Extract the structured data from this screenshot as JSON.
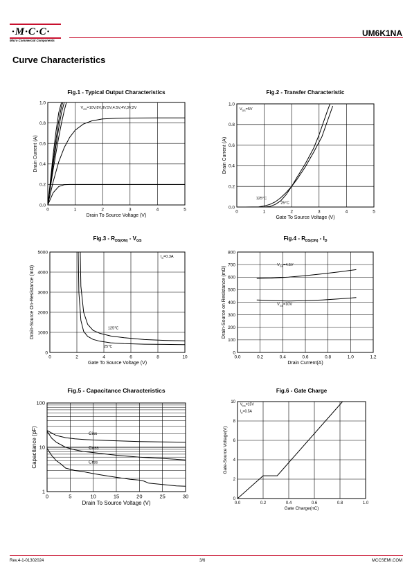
{
  "header": {
    "logo_text": "·M·C·C·",
    "logo_subtitle": "Micro Commercial Components",
    "part_number": "UM6K1NA"
  },
  "section_title": "Curve Characteristics",
  "footer": {
    "revision": "Rev.4-1-01302024",
    "page": "3/6",
    "website": "MCCSEMI.COM"
  },
  "chart_data": [
    {
      "id": "fig1",
      "type": "line",
      "title": "Fig.1 - Typical Output Characteristics",
      "xlabel": "Drain To Source Voltage (V)",
      "ylabel": "Drain Current (A)",
      "xlim": [
        0,
        5
      ],
      "ylim": [
        0,
        1.0
      ],
      "xticks": [
        0,
        1,
        2,
        3,
        4,
        5
      ],
      "yticks": [
        0,
        0.2,
        0.4,
        0.6,
        0.8,
        1.0
      ],
      "grid": true,
      "annotations": [
        {
          "text": "VGS=10V,8V,8V,5V,4.5V,4V,3V,2V",
          "x": 1.2,
          "y": 0.94
        }
      ],
      "series": [
        {
          "x": [
            0,
            0.1,
            0.2,
            0.3,
            0.4,
            0.5
          ],
          "y": [
            0,
            0.25,
            0.5,
            0.72,
            0.9,
            1.0
          ]
        },
        {
          "x": [
            0,
            0.1,
            0.2,
            0.3,
            0.4,
            0.5,
            0.55
          ],
          "y": [
            0,
            0.22,
            0.44,
            0.64,
            0.82,
            0.96,
            1.0
          ]
        },
        {
          "x": [
            0,
            0.1,
            0.2,
            0.3,
            0.4,
            0.5,
            0.6
          ],
          "y": [
            0,
            0.2,
            0.4,
            0.58,
            0.75,
            0.9,
            1.0
          ]
        },
        {
          "x": [
            0,
            0.1,
            0.2,
            0.3,
            0.4,
            0.5,
            0.6,
            0.68
          ],
          "y": [
            0,
            0.18,
            0.35,
            0.51,
            0.66,
            0.8,
            0.92,
            1.0
          ]
        },
        {
          "x": [
            0,
            0.2,
            0.4,
            0.6,
            0.8,
            1.0,
            1.3,
            1.6,
            2.0,
            2.5,
            3.0,
            4.0,
            5.0
          ],
          "y": [
            0,
            0.23,
            0.42,
            0.56,
            0.66,
            0.73,
            0.79,
            0.82,
            0.84,
            0.845,
            0.848,
            0.85,
            0.85
          ]
        },
        {
          "x": [
            0,
            0.2,
            0.4,
            0.6,
            0.8,
            1.0,
            1.5,
            2.0,
            3.0,
            4.0,
            5.0
          ],
          "y": [
            0,
            0.12,
            0.18,
            0.197,
            0.2,
            0.2,
            0.2,
            0.2,
            0.2,
            0.2,
            0.2
          ]
        }
      ]
    },
    {
      "id": "fig2",
      "type": "line",
      "title": "Fig.2 - Transfer Characteristic",
      "xlabel": "Gate To Source Voltage (V)",
      "ylabel": "Drain Current (A)",
      "xlim": [
        0,
        5
      ],
      "ylim": [
        0,
        1.0
      ],
      "xticks": [
        0,
        1,
        2,
        3,
        4,
        5
      ],
      "yticks": [
        0,
        0.2,
        0.4,
        0.6,
        0.8,
        1.0
      ],
      "grid": true,
      "annotations": [
        {
          "text": "VDS=5V",
          "x": 0.1,
          "y": 0.94
        },
        {
          "text": "125°C",
          "x": 0.7,
          "y": 0.075
        },
        {
          "text": "25°C",
          "x": 1.6,
          "y": 0.03
        }
      ],
      "series": [
        {
          "name": "125°C",
          "x": [
            0.3,
            0.8,
            1.0,
            1.2,
            1.4,
            1.6,
            1.8,
            2.0,
            2.2,
            2.5,
            2.8,
            3.1,
            3.5
          ],
          "y": [
            0,
            0.002,
            0.01,
            0.025,
            0.05,
            0.09,
            0.14,
            0.2,
            0.27,
            0.39,
            0.53,
            0.68,
            0.98
          ]
        },
        {
          "name": "25°C",
          "x": [
            0.3,
            1.0,
            1.2,
            1.4,
            1.6,
            1.8,
            2.0,
            2.2,
            2.5,
            2.8,
            3.0,
            3.3,
            3.4
          ],
          "y": [
            0,
            0,
            0.005,
            0.025,
            0.06,
            0.12,
            0.2,
            0.29,
            0.42,
            0.57,
            0.7,
            0.93,
            1.0
          ]
        }
      ]
    },
    {
      "id": "fig3",
      "type": "line",
      "title": "Fig.3 - R",
      "title_sub": "DS(ON)",
      "title_suffix": " - V",
      "title_sub2": "GS",
      "xlabel": "Gate To Source Voltage (V)",
      "ylabel": "Drain-Source On-Resistance (mΩ)",
      "xlim": [
        0,
        10
      ],
      "ylim": [
        0,
        5000
      ],
      "xticks": [
        0,
        2,
        4,
        6,
        8,
        10
      ],
      "yticks": [
        0,
        1000,
        2000,
        3000,
        4000,
        5000
      ],
      "grid": true,
      "annotations": [
        {
          "text": "ID=0.3A",
          "x": 8.2,
          "y": 4730
        },
        {
          "text": "125℃",
          "x": 4.3,
          "y": 1150
        },
        {
          "text": "25℃",
          "x": 4.0,
          "y": 250
        }
      ],
      "series": [
        {
          "name": "125°C",
          "x": [
            2.25,
            2.3,
            2.5,
            2.8,
            3.2,
            3.7,
            4.5,
            5.5,
            7,
            8.5,
            10
          ],
          "y": [
            5000,
            3300,
            2000,
            1400,
            1100,
            950,
            820,
            730,
            640,
            600,
            580
          ]
        },
        {
          "name": "25°C",
          "x": [
            2.1,
            2.15,
            2.3,
            2.5,
            2.8,
            3.2,
            3.7,
            4.5,
            5.5,
            7,
            8.5,
            10
          ],
          "y": [
            5000,
            3000,
            1600,
            1050,
            800,
            650,
            560,
            480,
            440,
            410,
            400,
            390
          ]
        }
      ]
    },
    {
      "id": "fig4",
      "type": "line",
      "title": "Fig.4 - R",
      "title_sub": "DS(ON)",
      "title_suffix": " - I",
      "title_sub2": "D",
      "xlabel": "Drain Current(A)",
      "ylabel": "Drain-Source on Resistance (mΩ)",
      "xlim": [
        0,
        1.2
      ],
      "ylim": [
        0,
        800
      ],
      "xticks": [
        0.0,
        0.2,
        0.4,
        0.6,
        0.8,
        1.0,
        1.2
      ],
      "yticks": [
        0,
        100,
        200,
        300,
        400,
        500,
        600,
        700,
        800
      ],
      "grid": true,
      "annotations": [
        {
          "text": "VGS=4.5V",
          "x": 0.35,
          "y": 690
        },
        {
          "text": "VGS=10V",
          "x": 0.35,
          "y": 375
        }
      ],
      "series": [
        {
          "name": "VGS=4.5V",
          "x": [
            0.17,
            0.3,
            0.45,
            0.6,
            0.75,
            0.9,
            1.05
          ],
          "y": [
            590,
            592,
            600,
            612,
            626,
            642,
            660
          ]
        },
        {
          "name": "VGS=10V",
          "x": [
            0.17,
            0.3,
            0.45,
            0.6,
            0.75,
            0.9,
            1.05
          ],
          "y": [
            418,
            413,
            410,
            412,
            418,
            427,
            437
          ]
        }
      ]
    },
    {
      "id": "fig5",
      "type": "line",
      "title": "Fig.5 - Capacitance Characteristics",
      "xlabel": "Drain To Source Voltage (V)",
      "ylabel": "Capacitance (pF)",
      "xlim": [
        0,
        30
      ],
      "ylim": [
        1,
        100
      ],
      "yscale": "log",
      "xticks": [
        0,
        5,
        10,
        15,
        20,
        25,
        30
      ],
      "yticks": [
        1,
        10,
        100
      ],
      "grid": true,
      "annotations": [
        {
          "text": "Ciss",
          "x": 9,
          "y": 19
        },
        {
          "text": "Coss",
          "x": 9,
          "y": 9.2
        },
        {
          "text": "Crss",
          "x": 9,
          "y": 4.3
        }
      ],
      "series": [
        {
          "name": "Ciss",
          "x": [
            0,
            1,
            2,
            4,
            6,
            8,
            10,
            15,
            20,
            25,
            30
          ],
          "y": [
            24,
            21,
            18.5,
            16.5,
            15.5,
            15,
            14.6,
            14,
            13.5,
            13.2,
            13
          ]
        },
        {
          "name": "Coss",
          "x": [
            0,
            1,
            2,
            4,
            6,
            8,
            10,
            15,
            20,
            25,
            30
          ],
          "y": [
            23,
            16,
            13,
            10,
            8.8,
            8,
            7.6,
            6.6,
            6,
            5.6,
            5.2
          ]
        },
        {
          "name": "Crss",
          "x": [
            0,
            1,
            2,
            3,
            4,
            6,
            8,
            10,
            12,
            15,
            18,
            20,
            21,
            22,
            25,
            28,
            30
          ],
          "y": [
            9.5,
            6.5,
            5,
            4.2,
            3.4,
            3,
            2.8,
            2.55,
            2.35,
            2.1,
            1.9,
            1.82,
            1.72,
            1.55,
            1.45,
            1.35,
            1.32
          ]
        }
      ]
    },
    {
      "id": "fig6",
      "type": "line",
      "title": "Fig.6 - Gate Charge",
      "xlabel": "Gate Charge(nC)",
      "ylabel": "Gate-Source Voltage(V)",
      "xlim": [
        0,
        1.0
      ],
      "ylim": [
        0,
        10
      ],
      "xticks": [
        0.0,
        0.2,
        0.4,
        0.6,
        0.8,
        1.0
      ],
      "yticks": [
        0,
        2,
        4,
        6,
        8,
        10
      ],
      "grid": true,
      "annotations": [
        {
          "text": "VDS=15V",
          "x": 0.02,
          "y": 9.6
        },
        {
          "text": "ID=0.5A",
          "x": 0.02,
          "y": 8.9
        }
      ],
      "series": [
        {
          "x": [
            0,
            0.2,
            0.31,
            0.82
          ],
          "y": [
            0,
            2.35,
            2.35,
            10
          ]
        }
      ]
    }
  ]
}
